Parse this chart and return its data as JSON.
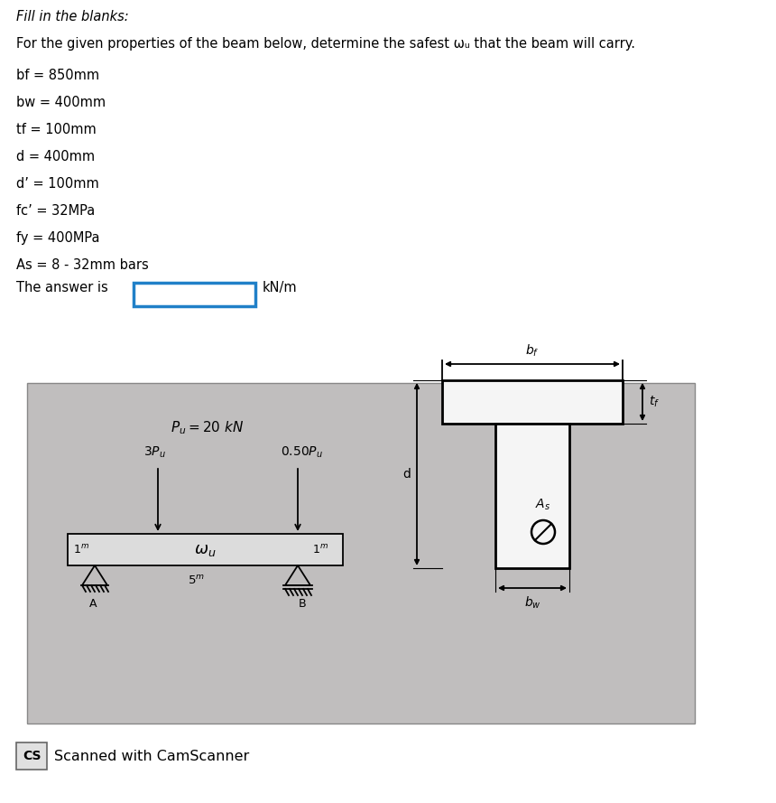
{
  "title_italic": "Fill in the blanks:",
  "line1": "For the given properties of the beam below, determine the safest ωᵤ that the beam will carry.",
  "props": [
    "bf = 850mm",
    "bw = 400mm",
    "tf = 100mm",
    "d = 400mm",
    "d’ = 100mm",
    "fc’ = 32MPa",
    "fy = 400MPa",
    "As = 8 - 32mm bars"
  ],
  "answer_label": "The answer is",
  "answer_unit": "kN/m",
  "bg_gray": "#c0bebe",
  "white": "#ffffff",
  "black": "#000000",
  "blue": "#2080c8",
  "cs_text": "Scanned with CamScanner",
  "beam_fill": "#dcdcdc",
  "tbeam_fill": "#f5f5f5"
}
